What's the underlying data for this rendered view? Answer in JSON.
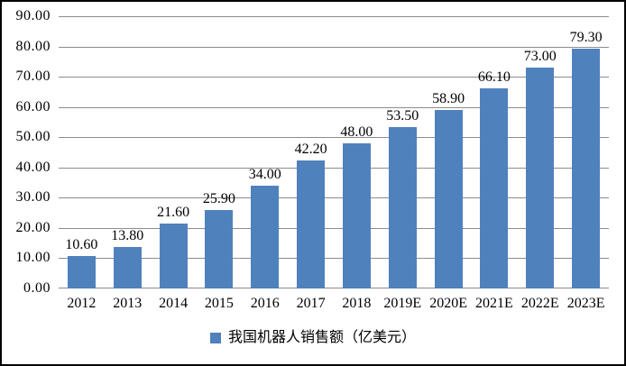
{
  "chart_data": {
    "type": "bar",
    "title": "",
    "categories": [
      "2012",
      "2013",
      "2014",
      "2015",
      "2016",
      "2017",
      "2018",
      "2019E",
      "2020E",
      "2021E",
      "2022E",
      "2023E"
    ],
    "values": [
      10.6,
      13.8,
      21.6,
      25.9,
      34.0,
      42.2,
      48.0,
      53.5,
      58.9,
      66.1,
      73.0,
      79.3
    ],
    "data_labels": [
      "10.60",
      "13.80",
      "21.60",
      "25.90",
      "34.00",
      "42.20",
      "48.00",
      "53.50",
      "58.90",
      "66.10",
      "73.00",
      "79.30"
    ],
    "series_name": "我国机器人销售额（亿美元）",
    "y_ticks": [
      "90.00",
      "80.00",
      "70.00",
      "60.00",
      "50.00",
      "40.00",
      "30.00",
      "20.00",
      "10.00",
      "0.00"
    ],
    "ylim": [
      0,
      90
    ],
    "xlabel": "",
    "ylabel": "",
    "grid": true,
    "legend": {
      "label": "我国机器人销售额（亿美元）",
      "position": "bottom"
    },
    "colors": {
      "bar": "#4F81BD",
      "gridline": "#8C8C8C",
      "axis_line": "#8C8C8C",
      "text": "#000000",
      "background": "#FFFFFF",
      "border": "#000000"
    }
  }
}
